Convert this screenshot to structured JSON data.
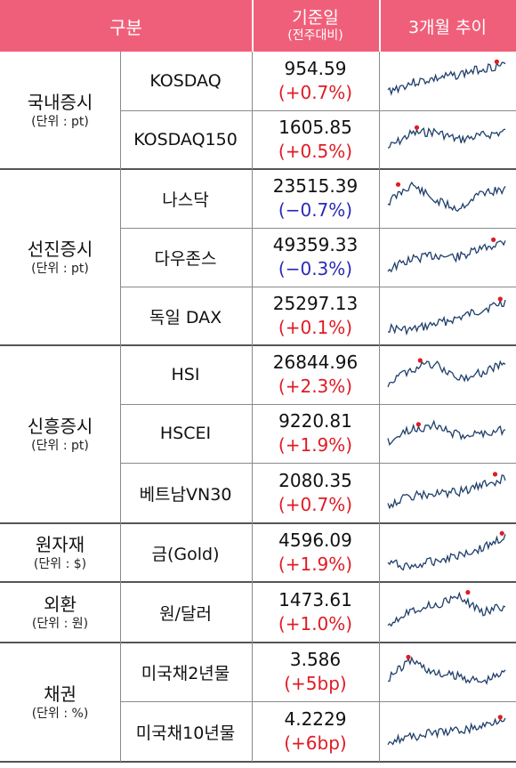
{
  "header": {
    "col1": "구분",
    "col2_line1": "기준일",
    "col2_line2": "(전주대비)",
    "col3": "3개월 추이"
  },
  "colors": {
    "header_bg": "#f05f7a",
    "up": "#e01b24",
    "down": "#2a2ab8",
    "spark_line": "#1f3f6b",
    "spark_marker": "#e01b24"
  },
  "groups": [
    {
      "name": "국내증시",
      "unit": "(단위 : pt)"
    },
    {
      "name": "선진증시",
      "unit": "(단위 : pt)"
    },
    {
      "name": "신흥증시",
      "unit": "(단위 : pt)"
    },
    {
      "name": "원자재",
      "unit": "(단위 : $)"
    },
    {
      "name": "외환",
      "unit": "(단위 : 원)"
    },
    {
      "name": "채권",
      "unit": "(단위 : %)"
    }
  ],
  "rows": [
    {
      "name": "KOSDAQ",
      "value": "954.59",
      "change": "(+0.7%)",
      "dir": "up"
    },
    {
      "name": "KOSDAQ150",
      "value": "1605.85",
      "change": "(+0.5%)",
      "dir": "up"
    },
    {
      "name": "나스닥",
      "value": "23515.39",
      "change": "(−0.7%)",
      "dir": "down"
    },
    {
      "name": "다우존스",
      "value": "49359.33",
      "change": "(−0.3%)",
      "dir": "down"
    },
    {
      "name": "독일 DAX",
      "value": "25297.13",
      "change": "(+0.1%)",
      "dir": "up"
    },
    {
      "name": "HSI",
      "value": "26844.96",
      "change": "(+2.3%)",
      "dir": "up"
    },
    {
      "name": "HSCEI",
      "value": "9220.81",
      "change": "(+1.9%)",
      "dir": "up"
    },
    {
      "name": "베트남VN30",
      "value": "2080.35",
      "change": "(+0.7%)",
      "dir": "up"
    },
    {
      "name": "금(Gold)",
      "value": "4596.09",
      "change": "(+1.9%)",
      "dir": "up"
    },
    {
      "name": "원/달러",
      "value": "1473.61",
      "change": "(+1.0%)",
      "dir": "up"
    },
    {
      "name": "미국채2년물",
      "value": "3.586",
      "change": "(+5bp)",
      "dir": "up"
    },
    {
      "name": "미국채10년물",
      "value": "4.2229",
      "change": "(+6bp)",
      "dir": "up"
    }
  ]
}
